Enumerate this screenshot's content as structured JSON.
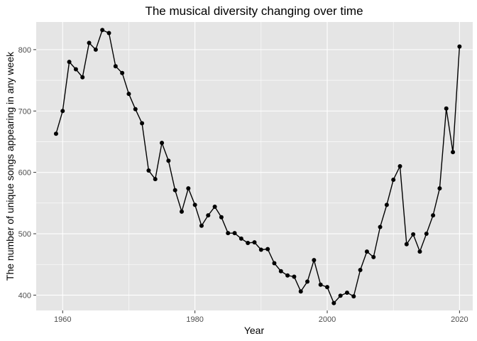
{
  "chart_data": {
    "type": "line",
    "title": "The musical diversity changing over time",
    "xlabel": "Year",
    "ylabel": "The number of unique songs appearing in any week",
    "xlim": [
      1956,
      2022
    ],
    "ylim": [
      375,
      845
    ],
    "x_ticks": [
      1960,
      1980,
      2000,
      2020
    ],
    "y_ticks": [
      400,
      500,
      600,
      700,
      800
    ],
    "grid": true,
    "markers": true,
    "colors": {
      "panel": "#e5e5e5",
      "grid_major": "#ffffff",
      "line": "#000000",
      "tick_label": "#4d4d4d",
      "tick_mark": "#333333"
    },
    "x": [
      1959,
      1960,
      1961,
      1962,
      1963,
      1964,
      1965,
      1966,
      1967,
      1968,
      1969,
      1970,
      1971,
      1972,
      1973,
      1974,
      1975,
      1976,
      1977,
      1978,
      1979,
      1980,
      1981,
      1982,
      1983,
      1984,
      1985,
      1986,
      1987,
      1988,
      1989,
      1990,
      1991,
      1992,
      1993,
      1994,
      1995,
      1996,
      1997,
      1998,
      1999,
      2000,
      2001,
      2002,
      2003,
      2004,
      2005,
      2006,
      2007,
      2008,
      2009,
      2010,
      2011,
      2012,
      2013,
      2014,
      2015,
      2016,
      2017,
      2018,
      2019,
      2020
    ],
    "y": [
      663,
      700,
      780,
      768,
      755,
      811,
      800,
      832,
      827,
      773,
      762,
      728,
      703,
      680,
      603,
      589,
      648,
      619,
      571,
      536,
      574,
      547,
      513,
      530,
      544,
      527,
      501,
      501,
      492,
      485,
      486,
      474,
      475,
      452,
      439,
      432,
      430,
      406,
      422,
      457,
      417,
      413,
      387,
      399,
      404,
      398,
      441,
      471,
      462,
      511,
      547,
      588,
      610,
      483,
      499,
      471,
      500,
      530,
      574,
      704,
      633,
      805
    ]
  }
}
